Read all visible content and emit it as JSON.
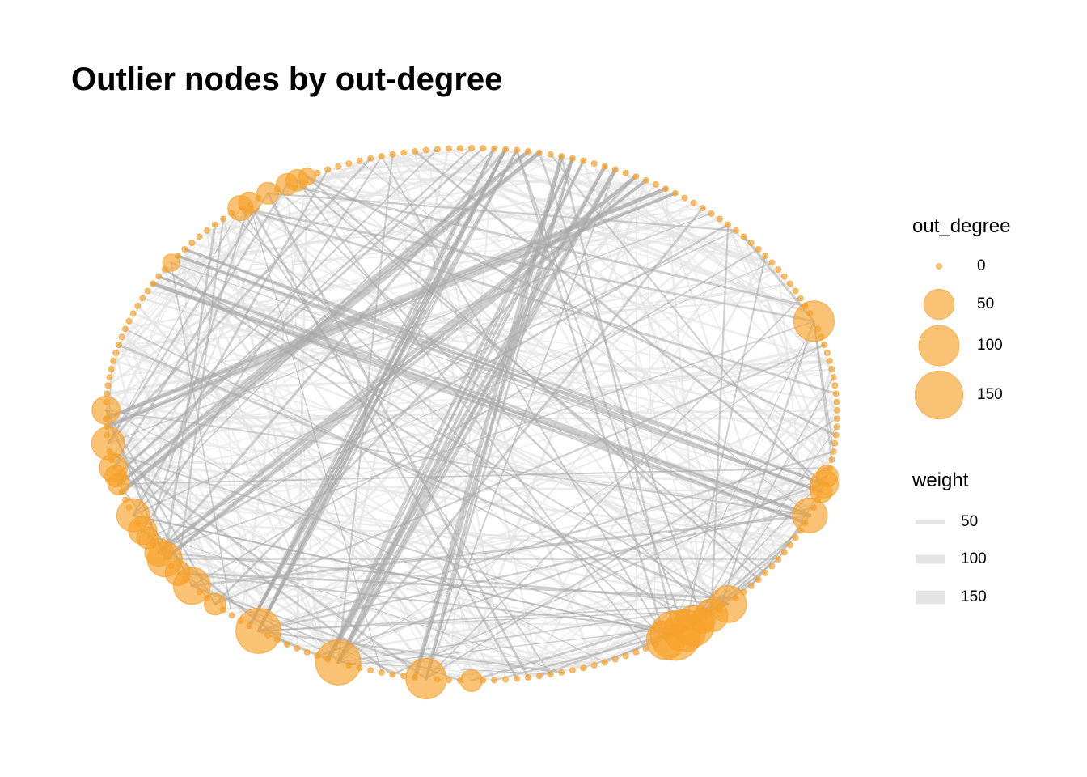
{
  "title": "Outlier nodes by out-degree",
  "colors": {
    "node": "#F7A12A",
    "edge": "#A9A9A9",
    "edge_light": "#E4E4E4",
    "background": "#FFFFFF"
  },
  "legend": {
    "size": {
      "title": "out_degree",
      "items": [
        {
          "label": "0",
          "value": 0
        },
        {
          "label": "50",
          "value": 50
        },
        {
          "label": "100",
          "value": 100
        },
        {
          "label": "150",
          "value": 150
        }
      ]
    },
    "weight": {
      "title": "weight",
      "items": [
        {
          "label": "50",
          "value": 50
        },
        {
          "label": "100",
          "value": 100
        },
        {
          "label": "150",
          "value": 150
        }
      ]
    }
  },
  "network": {
    "layout": "circle",
    "node_count": 200,
    "node_out_degrees": [
      0,
      0,
      0,
      0,
      0,
      0,
      0,
      0,
      0,
      0,
      0,
      0,
      0,
      0,
      0,
      0,
      0,
      0,
      0,
      0,
      0,
      0,
      0,
      0,
      0,
      0,
      0,
      0,
      0,
      0,
      0,
      0,
      0,
      0,
      0,
      0,
      0,
      0,
      0,
      100,
      0,
      0,
      0,
      0,
      0,
      0,
      0,
      0,
      0,
      0,
      0,
      0,
      0,
      0,
      0,
      0,
      0,
      0,
      20,
      40,
      20,
      0,
      0,
      70,
      0,
      0,
      0,
      0,
      0,
      0,
      0,
      0,
      0,
      0,
      0,
      0,
      80,
      0,
      60,
      30,
      100,
      110,
      160,
      90,
      0,
      0,
      0,
      0,
      0,
      0,
      0,
      0,
      0,
      0,
      0,
      0,
      0,
      0,
      0,
      0,
      0,
      20,
      0,
      0,
      0,
      100,
      0,
      0,
      0,
      0,
      0,
      0,
      0,
      130,
      0,
      0,
      0,
      0,
      0,
      0,
      0,
      130,
      0,
      0,
      0,
      0,
      20,
      0,
      0,
      80,
      0,
      30,
      0,
      70,
      40,
      0,
      20,
      40,
      0,
      60,
      0,
      0,
      0,
      20,
      20,
      40,
      0,
      0,
      60,
      0,
      0,
      0,
      40,
      0,
      0,
      0,
      0,
      0,
      0,
      0,
      0,
      0,
      0,
      0,
      0,
      0,
      0,
      0,
      0,
      0,
      0,
      10,
      0,
      0,
      0,
      0,
      0,
      0,
      0,
      0,
      30,
      20,
      0,
      20,
      0,
      20,
      20,
      10,
      0,
      0,
      0,
      0,
      0,
      0,
      0,
      0,
      0,
      0,
      0,
      0,
      0,
      0
    ]
  }
}
